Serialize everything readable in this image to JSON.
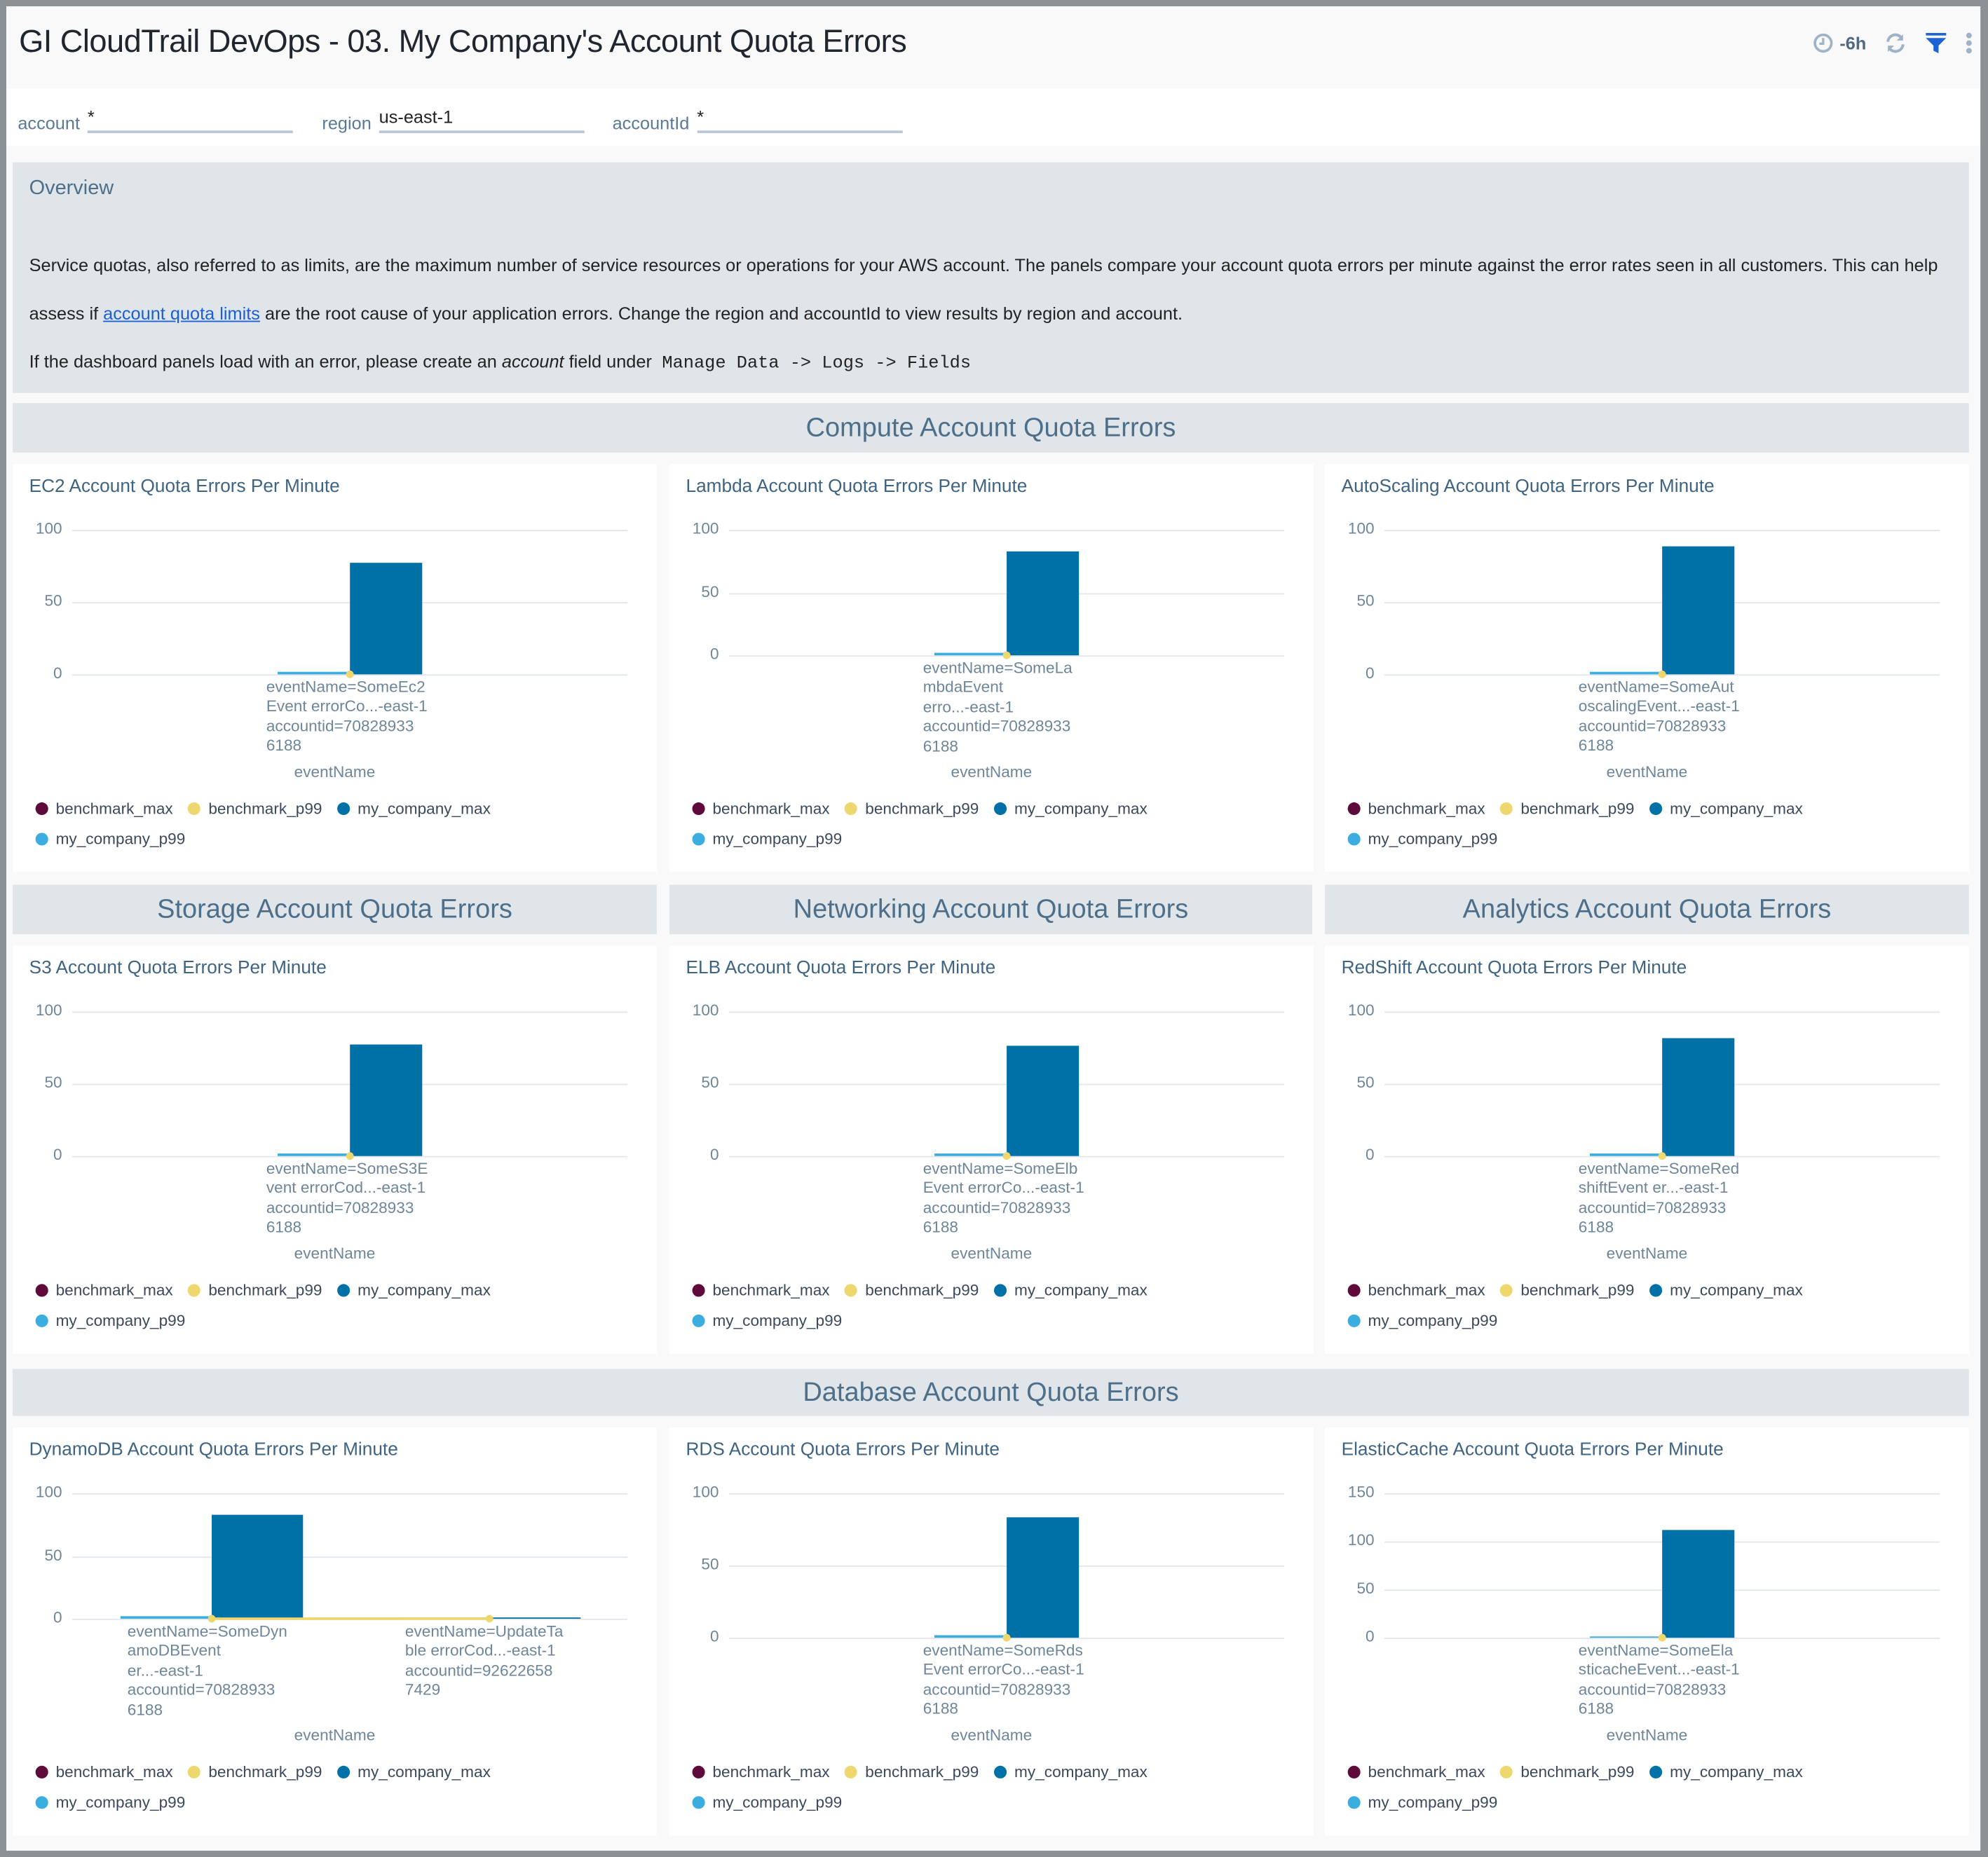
{
  "header": {
    "title": "GI CloudTrail DevOps - 03. My Company's Account Quota Errors",
    "time_range": "-6h",
    "icons": [
      "clock-icon",
      "refresh-icon",
      "filter-icon",
      "more-vertical-icon"
    ]
  },
  "filters": [
    {
      "label": "account",
      "value": "*"
    },
    {
      "label": "region",
      "value": "us-east-1"
    },
    {
      "label": "accountId",
      "value": "*"
    }
  ],
  "overview": {
    "title": "Overview",
    "p1_before": "Service quotas, also referred to as limits, are the maximum number of service resources or operations for your AWS account. The panels compare your account quota errors per minute against the error rates seen in all customers. This can help assess if ",
    "p1_link": "account quota limits",
    "p1_after": " are the root cause of your application errors. Change the region and accountId to view results by region and account.",
    "p2_before": "If the dashboard panels load with an error, please create an ",
    "p2_em": "account",
    "p2_after": " field under",
    "p2_code": "Manage Data -> Logs -> Fields"
  },
  "sections": [
    "Compute Account Quota Errors",
    "Storage Account Quota Errors",
    "Networking Account Quota Errors",
    "Analytics Account Quota Errors",
    "Database Account Quota Errors"
  ],
  "colors": {
    "benchmark_max": "#5e0a3b",
    "benchmark_p99": "#efd76f",
    "my_company_max": "#0071a6",
    "my_company_p99": "#3badde"
  },
  "legend": [
    "benchmark_max",
    "benchmark_p99",
    "my_company_max",
    "my_company_p99"
  ],
  "chart_data": [
    {
      "type": "bar",
      "title": "EC2 Account Quota Errors Per Minute",
      "xlabel": "eventName",
      "ylim": [
        0,
        100
      ],
      "yticks": [
        0,
        50,
        100
      ],
      "categories": [
        "eventName=SomeEc2\nEvent errorCo...-east-1\naccountid=70828933\n6188"
      ],
      "series": [
        {
          "name": "benchmark_max",
          "values": [
            0
          ]
        },
        {
          "name": "benchmark_p99",
          "values": [
            0
          ]
        },
        {
          "name": "my_company_max",
          "values": [
            77
          ]
        },
        {
          "name": "my_company_p99",
          "values": [
            1.5
          ]
        }
      ]
    },
    {
      "type": "bar",
      "title": "Lambda Account Quota Errors Per Minute",
      "xlabel": "eventName",
      "ylim": [
        0,
        100
      ],
      "yticks": [
        0,
        50,
        100
      ],
      "categories": [
        "eventName=SomeLa\nmbdaEvent\nerro...-east-1\naccountid=70828933\n6188"
      ],
      "series": [
        {
          "name": "benchmark_max",
          "values": [
            0
          ]
        },
        {
          "name": "benchmark_p99",
          "values": [
            0
          ]
        },
        {
          "name": "my_company_max",
          "values": [
            83
          ]
        },
        {
          "name": "my_company_p99",
          "values": [
            2
          ]
        }
      ]
    },
    {
      "type": "bar",
      "title": "AutoScaling Account Quota Errors Per Minute",
      "xlabel": "eventName",
      "ylim": [
        0,
        100
      ],
      "yticks": [
        0,
        50,
        100
      ],
      "categories": [
        "eventName=SomeAut\noscalingEvent...-east-1\naccountid=70828933\n6188"
      ],
      "series": [
        {
          "name": "benchmark_max",
          "values": [
            0
          ]
        },
        {
          "name": "benchmark_p99",
          "values": [
            0
          ]
        },
        {
          "name": "my_company_max",
          "values": [
            89
          ]
        },
        {
          "name": "my_company_p99",
          "values": [
            2
          ]
        }
      ]
    },
    {
      "type": "bar",
      "title": "S3 Account Quota Errors Per Minute",
      "xlabel": "eventName",
      "ylim": [
        0,
        100
      ],
      "yticks": [
        0,
        50,
        100
      ],
      "categories": [
        "eventName=SomeS3E\nvent errorCod...-east-1\naccountid=70828933\n6188"
      ],
      "series": [
        {
          "name": "benchmark_max",
          "values": [
            0
          ]
        },
        {
          "name": "benchmark_p99",
          "values": [
            0
          ]
        },
        {
          "name": "my_company_max",
          "values": [
            77
          ]
        },
        {
          "name": "my_company_p99",
          "values": [
            2
          ]
        }
      ]
    },
    {
      "type": "bar",
      "title": "ELB Account Quota Errors Per Minute",
      "xlabel": "eventName",
      "ylim": [
        0,
        100
      ],
      "yticks": [
        0,
        50,
        100
      ],
      "categories": [
        "eventName=SomeElb\nEvent errorCo...-east-1\naccountid=70828933\n6188"
      ],
      "series": [
        {
          "name": "benchmark_max",
          "values": [
            0
          ]
        },
        {
          "name": "benchmark_p99",
          "values": [
            0
          ]
        },
        {
          "name": "my_company_max",
          "values": [
            76
          ]
        },
        {
          "name": "my_company_p99",
          "values": [
            1.5
          ]
        }
      ]
    },
    {
      "type": "bar",
      "title": "RedShift Account Quota Errors Per Minute",
      "xlabel": "eventName",
      "ylim": [
        0,
        100
      ],
      "yticks": [
        0,
        50,
        100
      ],
      "categories": [
        "eventName=SomeRed\nshiftEvent er...-east-1\naccountid=70828933\n6188"
      ],
      "series": [
        {
          "name": "benchmark_max",
          "values": [
            0
          ]
        },
        {
          "name": "benchmark_p99",
          "values": [
            0
          ]
        },
        {
          "name": "my_company_max",
          "values": [
            82
          ]
        },
        {
          "name": "my_company_p99",
          "values": [
            2
          ]
        }
      ]
    },
    {
      "type": "bar",
      "title": "DynamoDB Account Quota Errors Per Minute",
      "xlabel": "eventName",
      "ylim": [
        0,
        100
      ],
      "yticks": [
        0,
        50,
        100
      ],
      "categories": [
        "eventName=SomeDyn\namoDBEvent\ner...-east-1\naccountid=70828933\n6188",
        "eventName=UpdateTa\nble errorCod...-east-1\naccountid=92622658\n7429"
      ],
      "series": [
        {
          "name": "benchmark_max",
          "values": [
            0,
            0
          ]
        },
        {
          "name": "benchmark_p99",
          "values": [
            0,
            0
          ]
        },
        {
          "name": "my_company_max",
          "values": [
            83,
            1.5
          ]
        },
        {
          "name": "my_company_p99",
          "values": [
            2,
            1
          ]
        }
      ]
    },
    {
      "type": "bar",
      "title": "RDS Account Quota Errors Per Minute",
      "xlabel": "eventName",
      "ylim": [
        0,
        100
      ],
      "yticks": [
        0,
        50,
        100
      ],
      "categories": [
        "eventName=SomeRds\nEvent errorCo...-east-1\naccountid=70828933\n6188"
      ],
      "series": [
        {
          "name": "benchmark_max",
          "values": [
            0
          ]
        },
        {
          "name": "benchmark_p99",
          "values": [
            0
          ]
        },
        {
          "name": "my_company_max",
          "values": [
            83
          ]
        },
        {
          "name": "my_company_p99",
          "values": [
            2
          ]
        }
      ]
    },
    {
      "type": "bar",
      "title": "ElasticCache Account Quota Errors Per Minute",
      "xlabel": "eventName",
      "ylim": [
        0,
        150
      ],
      "yticks": [
        0,
        50,
        100,
        150
      ],
      "categories": [
        "eventName=SomeEla\nsticacheEvent...-east-1\naccountid=70828933\n6188"
      ],
      "series": [
        {
          "name": "benchmark_max",
          "values": [
            0
          ]
        },
        {
          "name": "benchmark_p99",
          "values": [
            0
          ]
        },
        {
          "name": "my_company_max",
          "values": [
            112
          ]
        },
        {
          "name": "my_company_p99",
          "values": [
            1
          ]
        }
      ]
    }
  ]
}
